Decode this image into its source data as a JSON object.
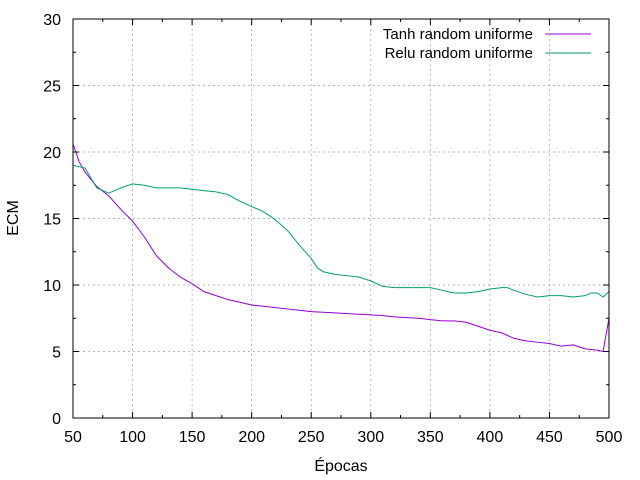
{
  "chart_data": {
    "type": "line",
    "xlabel": "Épocas",
    "ylabel": "ECM",
    "xlim": [
      50,
      500
    ],
    "ylim": [
      0,
      30
    ],
    "xticks": [
      50,
      100,
      150,
      200,
      250,
      300,
      350,
      400,
      450,
      500
    ],
    "yticks": [
      0,
      5,
      10,
      15,
      20,
      25,
      30
    ],
    "grid": true,
    "legend_position": "top-right",
    "series": [
      {
        "name": "Tanh random uniforme",
        "color": "#9400d3",
        "x": [
          50,
          55,
          60,
          70,
          80,
          90,
          100,
          110,
          120,
          130,
          140,
          150,
          160,
          170,
          180,
          190,
          200,
          210,
          220,
          230,
          240,
          250,
          260,
          270,
          280,
          290,
          300,
          310,
          320,
          330,
          340,
          350,
          360,
          370,
          380,
          390,
          400,
          410,
          420,
          430,
          440,
          450,
          455,
          460,
          470,
          480,
          490,
          495,
          500
        ],
        "y": [
          20.6,
          19.3,
          18.5,
          17.4,
          16.7,
          15.7,
          14.8,
          13.6,
          12.2,
          11.3,
          10.6,
          10.1,
          9.5,
          9.2,
          8.9,
          8.7,
          8.5,
          8.4,
          8.3,
          8.2,
          8.1,
          8.0,
          7.95,
          7.9,
          7.85,
          7.8,
          7.75,
          7.7,
          7.6,
          7.55,
          7.5,
          7.4,
          7.3,
          7.3,
          7.2,
          6.9,
          6.6,
          6.4,
          6.0,
          5.8,
          5.7,
          5.6,
          5.5,
          5.4,
          5.5,
          5.2,
          5.1,
          5.0,
          7.5
        ]
      },
      {
        "name": "Relu random uniforme",
        "color": "#009e73",
        "x": [
          50,
          60,
          70,
          80,
          90,
          100,
          110,
          120,
          130,
          140,
          150,
          160,
          170,
          180,
          190,
          200,
          210,
          220,
          230,
          240,
          250,
          255,
          260,
          270,
          280,
          290,
          300,
          310,
          320,
          330,
          340,
          350,
          360,
          370,
          380,
          390,
          400,
          410,
          415,
          420,
          430,
          440,
          450,
          460,
          470,
          480,
          485,
          490,
          495,
          500
        ],
        "y": [
          19.0,
          18.8,
          17.3,
          16.9,
          17.3,
          17.6,
          17.5,
          17.3,
          17.3,
          17.3,
          17.2,
          17.1,
          17.0,
          16.8,
          16.3,
          15.9,
          15.5,
          14.9,
          14.1,
          13.0,
          12.0,
          11.3,
          11.0,
          10.8,
          10.7,
          10.6,
          10.3,
          9.9,
          9.8,
          9.8,
          9.8,
          9.8,
          9.6,
          9.4,
          9.4,
          9.5,
          9.7,
          9.8,
          9.8,
          9.6,
          9.3,
          9.1,
          9.2,
          9.2,
          9.1,
          9.2,
          9.4,
          9.4,
          9.1,
          9.5
        ]
      }
    ]
  }
}
